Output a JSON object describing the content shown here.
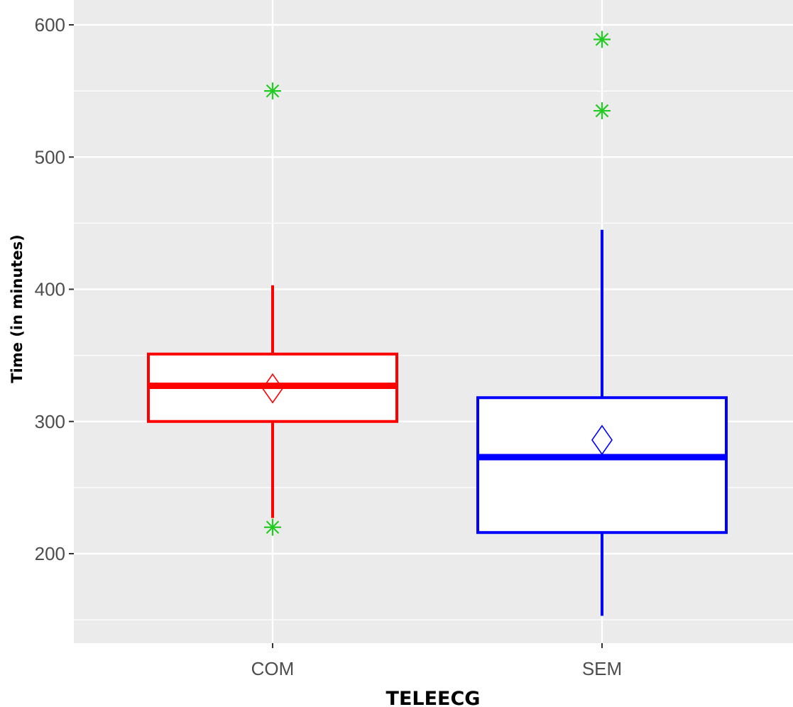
{
  "chart_data": {
    "type": "boxplot",
    "title": "",
    "xlabel": "TELEECG",
    "ylabel": "Time (in minutes)",
    "categories": [
      "COM",
      "SEM"
    ],
    "ylim": [
      130,
      610
    ],
    "y_ticks": [
      200,
      300,
      400,
      500,
      600
    ],
    "y_tick_labels": [
      "200",
      "300",
      "400",
      "500",
      "600"
    ],
    "grid": true,
    "boxes": [
      {
        "category": "COM",
        "color": "#ff0000",
        "whisker_low": 227,
        "q1": 300,
        "median": 327,
        "q3": 351,
        "whisker_high": 403,
        "mean": 325,
        "outliers": [
          220,
          550
        ]
      },
      {
        "category": "SEM",
        "color": "#0000ff",
        "whisker_low": 153,
        "q1": 216,
        "median": 273,
        "q3": 318,
        "whisker_high": 445,
        "mean": 286,
        "outliers": [
          535,
          589
        ]
      }
    ],
    "outlier_color": "#22cc22",
    "panel_color": "#ebebeb"
  }
}
